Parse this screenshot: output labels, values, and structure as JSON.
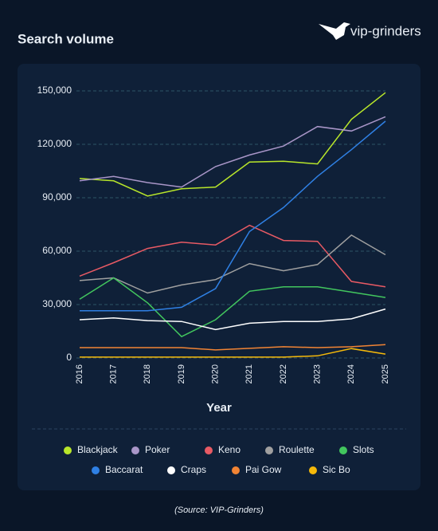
{
  "logo": "vip-grinders",
  "source": "(Source: VIP-Grinders)",
  "chart_data": {
    "type": "line",
    "title": "Search volume",
    "x_label": "Year",
    "categories": [
      "2016",
      "2017",
      "2018",
      "2019",
      "2020",
      "2021",
      "2022",
      "2023",
      "2024",
      "2025"
    ],
    "ylim": [
      0,
      150000
    ],
    "yticks": [
      0,
      {
        "value": 30000,
        "label": "30,000"
      },
      {
        "value": 60000,
        "label": "60,000"
      },
      {
        "value": 90000,
        "label": "90,000"
      },
      {
        "value": 120000,
        "label": "120,000"
      },
      {
        "value": 150000,
        "label": "150,000"
      }
    ],
    "grid": true,
    "series": [
      {
        "name": "Blackjack",
        "color": "#b8e62a",
        "values": [
          100800,
          99500,
          91000,
          95000,
          96000,
          110000,
          110500,
          109000,
          134000,
          149000
        ]
      },
      {
        "name": "Poker",
        "color": "#a996c8",
        "values": [
          99500,
          102000,
          98500,
          96000,
          107500,
          114000,
          119000,
          130000,
          127500,
          135500
        ]
      },
      {
        "name": "Keno",
        "color": "#e85a64",
        "values": [
          46000,
          53500,
          61500,
          65000,
          63500,
          74500,
          66000,
          65500,
          43000,
          40000
        ]
      },
      {
        "name": "Roulette",
        "color": "#a0a0a0",
        "values": [
          43500,
          45000,
          36500,
          41000,
          44000,
          53000,
          49000,
          52500,
          69000,
          58000
        ]
      },
      {
        "name": "Slots",
        "color": "#42c65e",
        "values": [
          33000,
          45000,
          31000,
          12000,
          21500,
          37500,
          40000,
          40000,
          37000,
          34000
        ]
      },
      {
        "name": "Baccarat",
        "color": "#2f80e4",
        "values": [
          26500,
          26500,
          26500,
          28500,
          39000,
          71000,
          84500,
          102000,
          117000,
          133000
        ]
      },
      {
        "name": "Craps",
        "color": "#ffffff",
        "values": [
          21500,
          22500,
          21000,
          20500,
          16000,
          19500,
          20500,
          20500,
          22000,
          27500
        ]
      },
      {
        "name": "Pai Gow",
        "color": "#f28434",
        "values": [
          5800,
          5800,
          5800,
          5800,
          4500,
          5400,
          6300,
          5800,
          6300,
          7500
        ]
      },
      {
        "name": "Sic Bo",
        "color": "#f5b90a",
        "values": [
          500,
          500,
          500,
          500,
          500,
          500,
          500,
          1200,
          5300,
          2200
        ]
      }
    ]
  }
}
